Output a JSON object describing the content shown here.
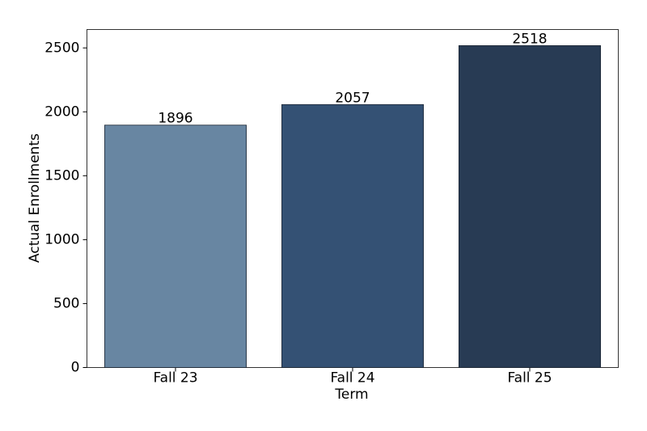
{
  "chart_data": {
    "type": "bar",
    "x_label": "Term",
    "y_label": "Actual Enrollments",
    "categories": [
      "Fall 23",
      "Fall 24",
      "Fall 25"
    ],
    "values": [
      1896,
      2057,
      2518
    ],
    "colors": [
      "#6886a2",
      "#345174",
      "#283b54"
    ],
    "ylim": [
      0,
      2643.9
    ],
    "yticks": [
      0,
      500,
      1000,
      1500,
      2000,
      2500
    ],
    "grid": false
  }
}
